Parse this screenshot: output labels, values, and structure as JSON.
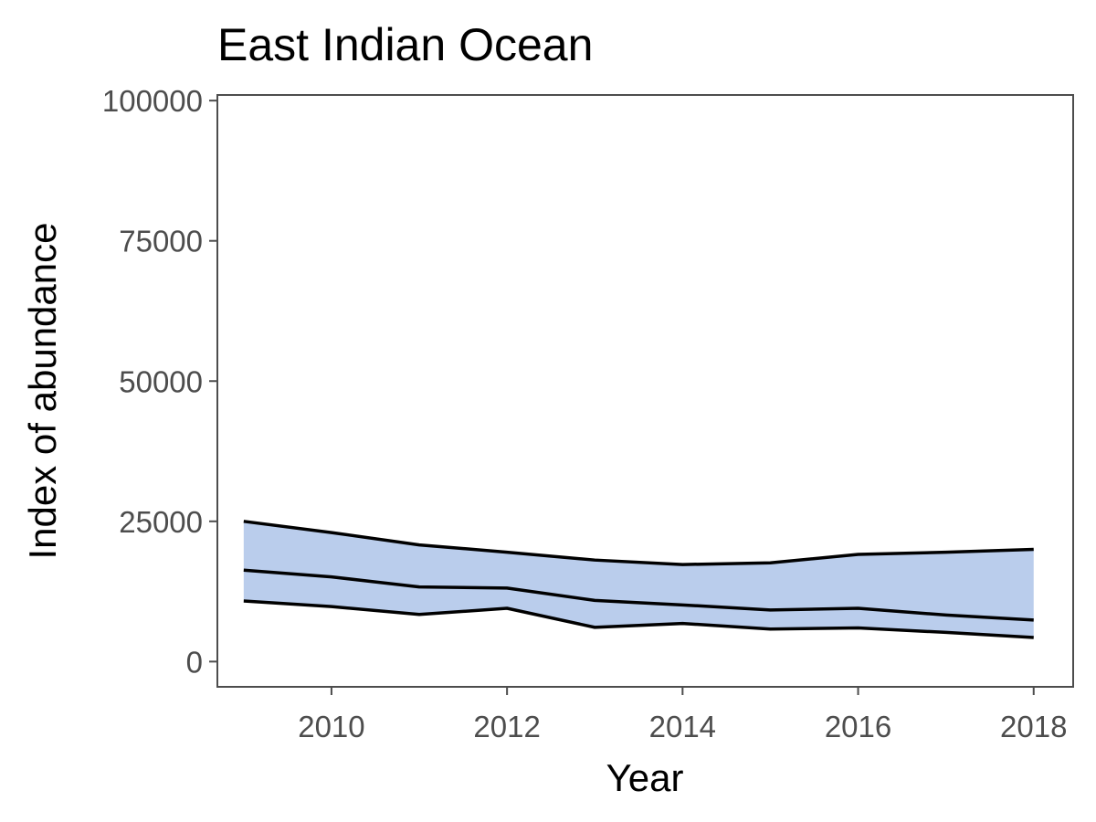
{
  "chart_data": {
    "type": "area",
    "title": "East Indian Ocean",
    "xlabel": "Year",
    "ylabel": "Index of abundance",
    "xlim": [
      2008.7,
      2018.45
    ],
    "ylim": [
      -4500,
      101000
    ],
    "x_ticks": [
      2010,
      2012,
      2014,
      2016,
      2018
    ],
    "x_tick_labels": [
      "2010",
      "2012",
      "2014",
      "2016",
      "2018"
    ],
    "y_ticks": [
      0,
      25000,
      50000,
      75000,
      100000
    ],
    "y_tick_labels": [
      "0",
      "25000",
      "50000",
      "75000",
      "100000"
    ],
    "grid": false,
    "legend": "none",
    "ribbon_color": "#bacdec",
    "line_color": "#000000",
    "x": [
      2009,
      2010,
      2011,
      2012,
      2013,
      2014,
      2015,
      2016,
      2017,
      2018
    ],
    "series": [
      {
        "values": [
          25000,
          23000,
          20800,
          19500,
          18100,
          17300,
          17600,
          19100,
          19500,
          20000
        ]
      },
      {
        "values": [
          16300,
          15100,
          13300,
          13100,
          10900,
          10100,
          9200,
          9500,
          8300,
          7400
        ]
      },
      {
        "values": [
          10800,
          9800,
          8400,
          9500,
          6100,
          6800,
          5800,
          6000,
          5200,
          4300
        ]
      }
    ]
  }
}
